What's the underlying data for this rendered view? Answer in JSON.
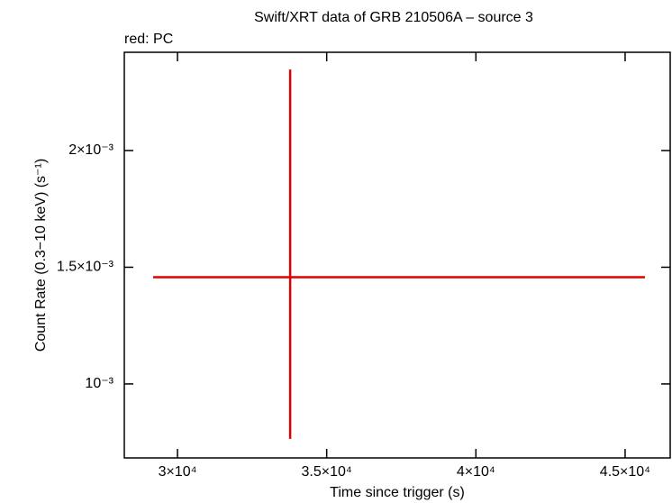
{
  "chart_data": {
    "type": "errorbar",
    "title": "Swift/XRT data of GRB 210506A – source 3",
    "subtitle": "red: PC",
    "x_label": "Time since trigger (s)",
    "y_label": "Count Rate (0.3−10 keV) (s⁻¹)",
    "xlim": [
      28218,
      46511
    ],
    "ylim": [
      0.000683,
      0.002421
    ],
    "xticks": [
      {
        "value": 30000,
        "label": "3×10⁴"
      },
      {
        "value": 35000,
        "label": "3.5×10⁴"
      },
      {
        "value": 40000,
        "label": "4×10⁴"
      },
      {
        "value": 45000,
        "label": "4.5×10⁴"
      }
    ],
    "yticks": [
      {
        "value": 0.001,
        "label": "10⁻³"
      },
      {
        "value": 0.0015,
        "label": "1.5×10⁻³"
      },
      {
        "value": 0.002,
        "label": "2×10⁻³"
      }
    ],
    "series": [
      {
        "name": "PC",
        "color": "#e00000",
        "x": [
          33776
        ],
        "values": [
          0.0014575
        ],
        "xlow": [
          29184
        ],
        "xhigh": [
          45665
        ],
        "ylow": [
          0.0007645
        ],
        "yhigh": [
          0.002347
        ]
      }
    ]
  }
}
